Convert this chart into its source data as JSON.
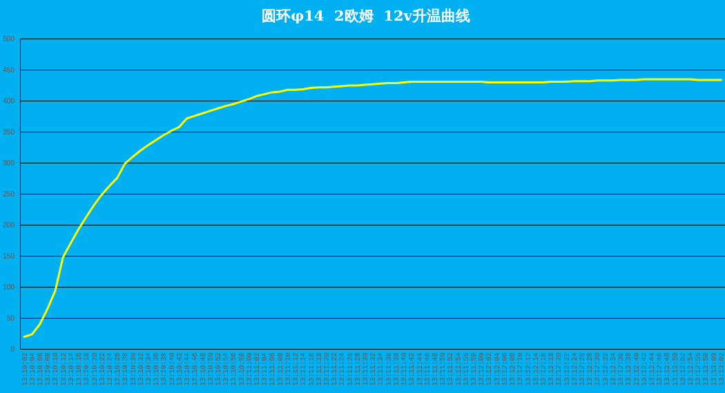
{
  "chart_data": {
    "type": "line",
    "title": "圆环φ14  2欧姆  12v升温曲线",
    "categories": [
      "13:10:02",
      "13:10:04",
      "13:10:06",
      "13:10:08",
      "13:10:10",
      "13:10:12",
      "13:10:14",
      "13:10:16",
      "13:10:18",
      "13:10:20",
      "13:10:22",
      "13:10:24",
      "13:10:26",
      "13:10:28",
      "13:10:30",
      "13:10:32",
      "13:10:34",
      "13:10:36",
      "13:10:38",
      "13:10:40",
      "13:10:42",
      "13:10:44",
      "13:10:46",
      "13:10:48",
      "13:10:50",
      "13:10:52",
      "13:10:54",
      "13:10:56",
      "13:10:58",
      "13:11:00",
      "13:11:02",
      "13:11:04",
      "13:11:06",
      "13:11:08",
      "13:11:10",
      "13:11:12",
      "13:11:14",
      "13:11:16",
      "13:11:18",
      "13:11:20",
      "13:11:22",
      "13:11:24",
      "13:11:26",
      "13:11:28",
      "13:11:30",
      "13:11:32",
      "13:11:34",
      "13:11:36",
      "13:11:38",
      "13:11:40",
      "13:11:42",
      "13:11:44",
      "13:11:46",
      "13:11:48",
      "13:11:50",
      "13:11:52",
      "13:11:54",
      "13:11:56",
      "13:11:58",
      "13:12:00",
      "13:12:02",
      "13:12:04",
      "13:12:06",
      "13:12:08",
      "13:12:10",
      "13:12:12",
      "13:12:14",
      "13:12:16",
      "13:12:18",
      "13:12:20",
      "13:12:22",
      "13:12:24",
      "13:12:26",
      "13:12:28",
      "13:12:30",
      "13:12:32",
      "13:12:34",
      "13:12:36",
      "13:12:38",
      "13:12:40",
      "13:12:42",
      "13:12:44",
      "13:12:46",
      "13:12:48",
      "13:12:50",
      "13:12:52",
      "13:12:54",
      "13:12:56",
      "13:12:58",
      "13:13:00",
      "13:13:02"
    ],
    "series": [
      {
        "color": "#ffff00",
        "values": [
          20,
          24,
          40,
          65,
          94,
          148,
          171,
          193,
          213,
          232,
          249,
          263,
          276,
          299,
          310,
          320,
          329,
          337,
          345,
          352,
          358,
          372,
          376,
          380,
          384,
          388,
          392,
          395,
          399,
          403,
          408,
          411,
          414,
          415,
          418,
          418,
          419,
          421,
          422,
          422,
          423,
          424,
          425,
          425,
          426,
          427,
          428,
          429,
          429,
          430,
          431,
          431,
          431,
          431,
          431,
          431,
          431,
          431,
          431,
          431,
          430,
          430,
          430,
          430,
          430,
          430,
          430,
          430,
          431,
          431,
          431,
          432,
          432,
          432,
          433,
          433,
          433,
          434,
          434,
          434,
          435,
          435,
          435,
          435,
          435,
          435,
          435,
          434,
          434,
          434,
          434
        ]
      }
    ],
    "ylim": [
      0,
      500
    ],
    "yticks": [
      0,
      50,
      100,
      150,
      200,
      250,
      300,
      350,
      400,
      450,
      500
    ],
    "grid": "y"
  }
}
